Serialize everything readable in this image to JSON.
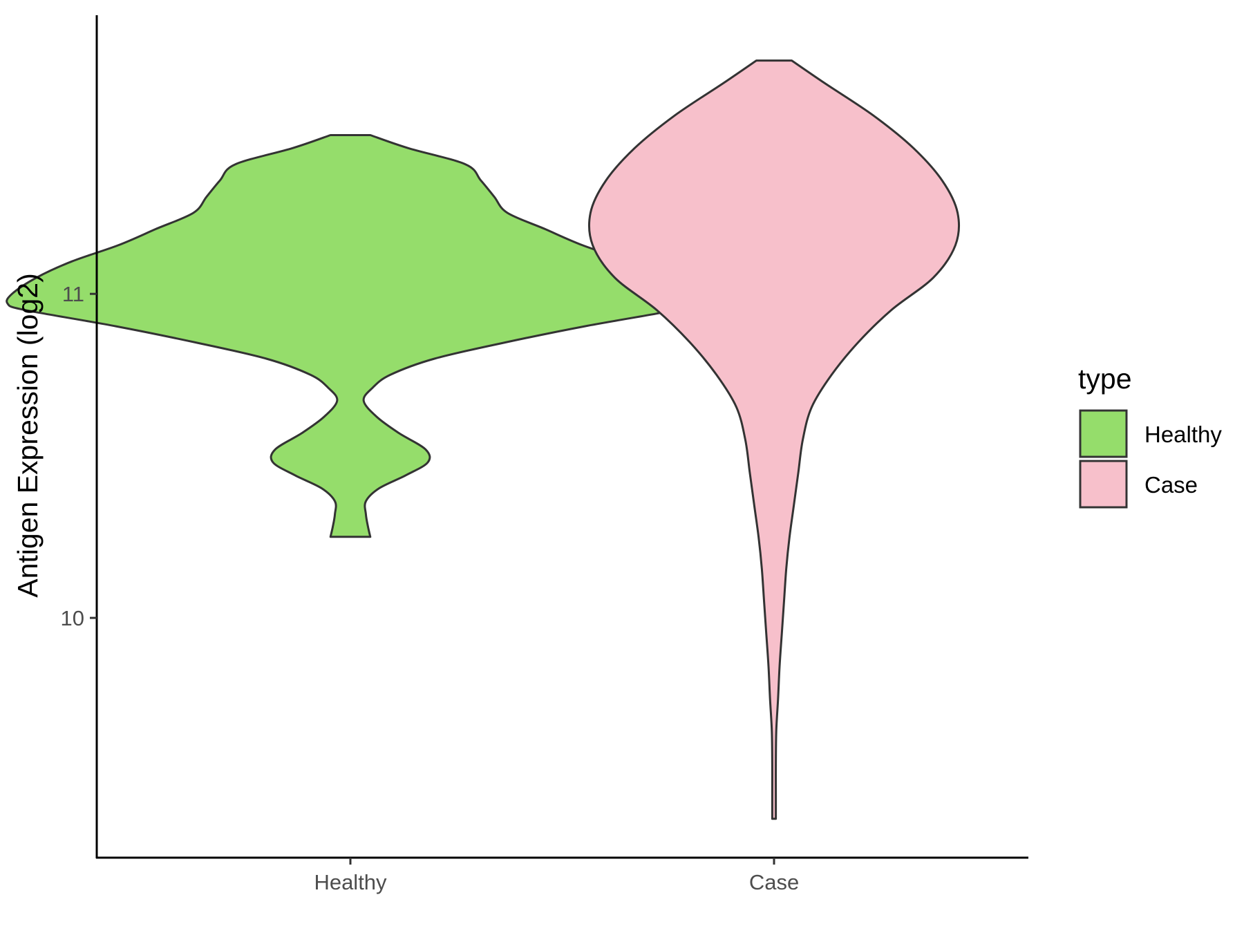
{
  "chart_data": {
    "type": "violin",
    "title": "",
    "xlabel": "",
    "ylabel": "Antigen Expression (log2)",
    "categories": [
      "Healthy",
      "Case"
    ],
    "yticks": [
      10,
      11
    ],
    "ylim": [
      9.26,
      11.86
    ],
    "grid": false,
    "legend": {
      "title": "type",
      "position": "right",
      "items": [
        {
          "label": "Healthy",
          "color": "#95dd6b"
        },
        {
          "label": "Case",
          "color": "#f7c0cb"
        }
      ]
    },
    "series": [
      {
        "name": "Healthy",
        "color": "#95dd6b",
        "min": 10.25,
        "max": 11.49,
        "profile": [
          [
            11.49,
            0.09
          ],
          [
            11.45,
            0.26
          ],
          [
            11.4,
            0.52
          ],
          [
            11.35,
            0.59
          ],
          [
            11.3,
            0.65
          ],
          [
            11.25,
            0.71
          ],
          [
            11.2,
            0.88
          ],
          [
            11.15,
            1.05
          ],
          [
            11.1,
            1.26
          ],
          [
            11.05,
            1.42
          ],
          [
            11.0,
            1.53
          ],
          [
            10.97,
            1.55
          ],
          [
            10.95,
            1.47
          ],
          [
            10.9,
            1.06
          ],
          [
            10.85,
            0.7
          ],
          [
            10.8,
            0.38
          ],
          [
            10.75,
            0.18
          ],
          [
            10.71,
            0.1
          ],
          [
            10.67,
            0.06
          ],
          [
            10.62,
            0.12
          ],
          [
            10.57,
            0.22
          ],
          [
            10.52,
            0.34
          ],
          [
            10.48,
            0.35
          ],
          [
            10.44,
            0.25
          ],
          [
            10.4,
            0.13
          ],
          [
            10.36,
            0.07
          ],
          [
            10.32,
            0.07
          ],
          [
            10.28,
            0.08
          ],
          [
            10.25,
            0.09
          ]
        ]
      },
      {
        "name": "Case",
        "color": "#f7c0cb",
        "min": 9.38,
        "max": 11.72,
        "profile": [
          [
            11.72,
            0.08
          ],
          [
            11.65,
            0.23
          ],
          [
            11.55,
            0.45
          ],
          [
            11.45,
            0.63
          ],
          [
            11.35,
            0.76
          ],
          [
            11.25,
            0.83
          ],
          [
            11.15,
            0.82
          ],
          [
            11.05,
            0.72
          ],
          [
            10.95,
            0.53
          ],
          [
            10.85,
            0.38
          ],
          [
            10.75,
            0.26
          ],
          [
            10.65,
            0.17
          ],
          [
            10.55,
            0.13
          ],
          [
            10.45,
            0.11
          ],
          [
            10.35,
            0.09
          ],
          [
            10.25,
            0.07
          ],
          [
            10.15,
            0.055
          ],
          [
            10.05,
            0.045
          ],
          [
            9.95,
            0.035
          ],
          [
            9.85,
            0.025
          ],
          [
            9.75,
            0.018
          ],
          [
            9.65,
            0.01
          ],
          [
            9.55,
            0.008
          ],
          [
            9.45,
            0.008
          ],
          [
            9.38,
            0.008
          ]
        ]
      }
    ]
  }
}
